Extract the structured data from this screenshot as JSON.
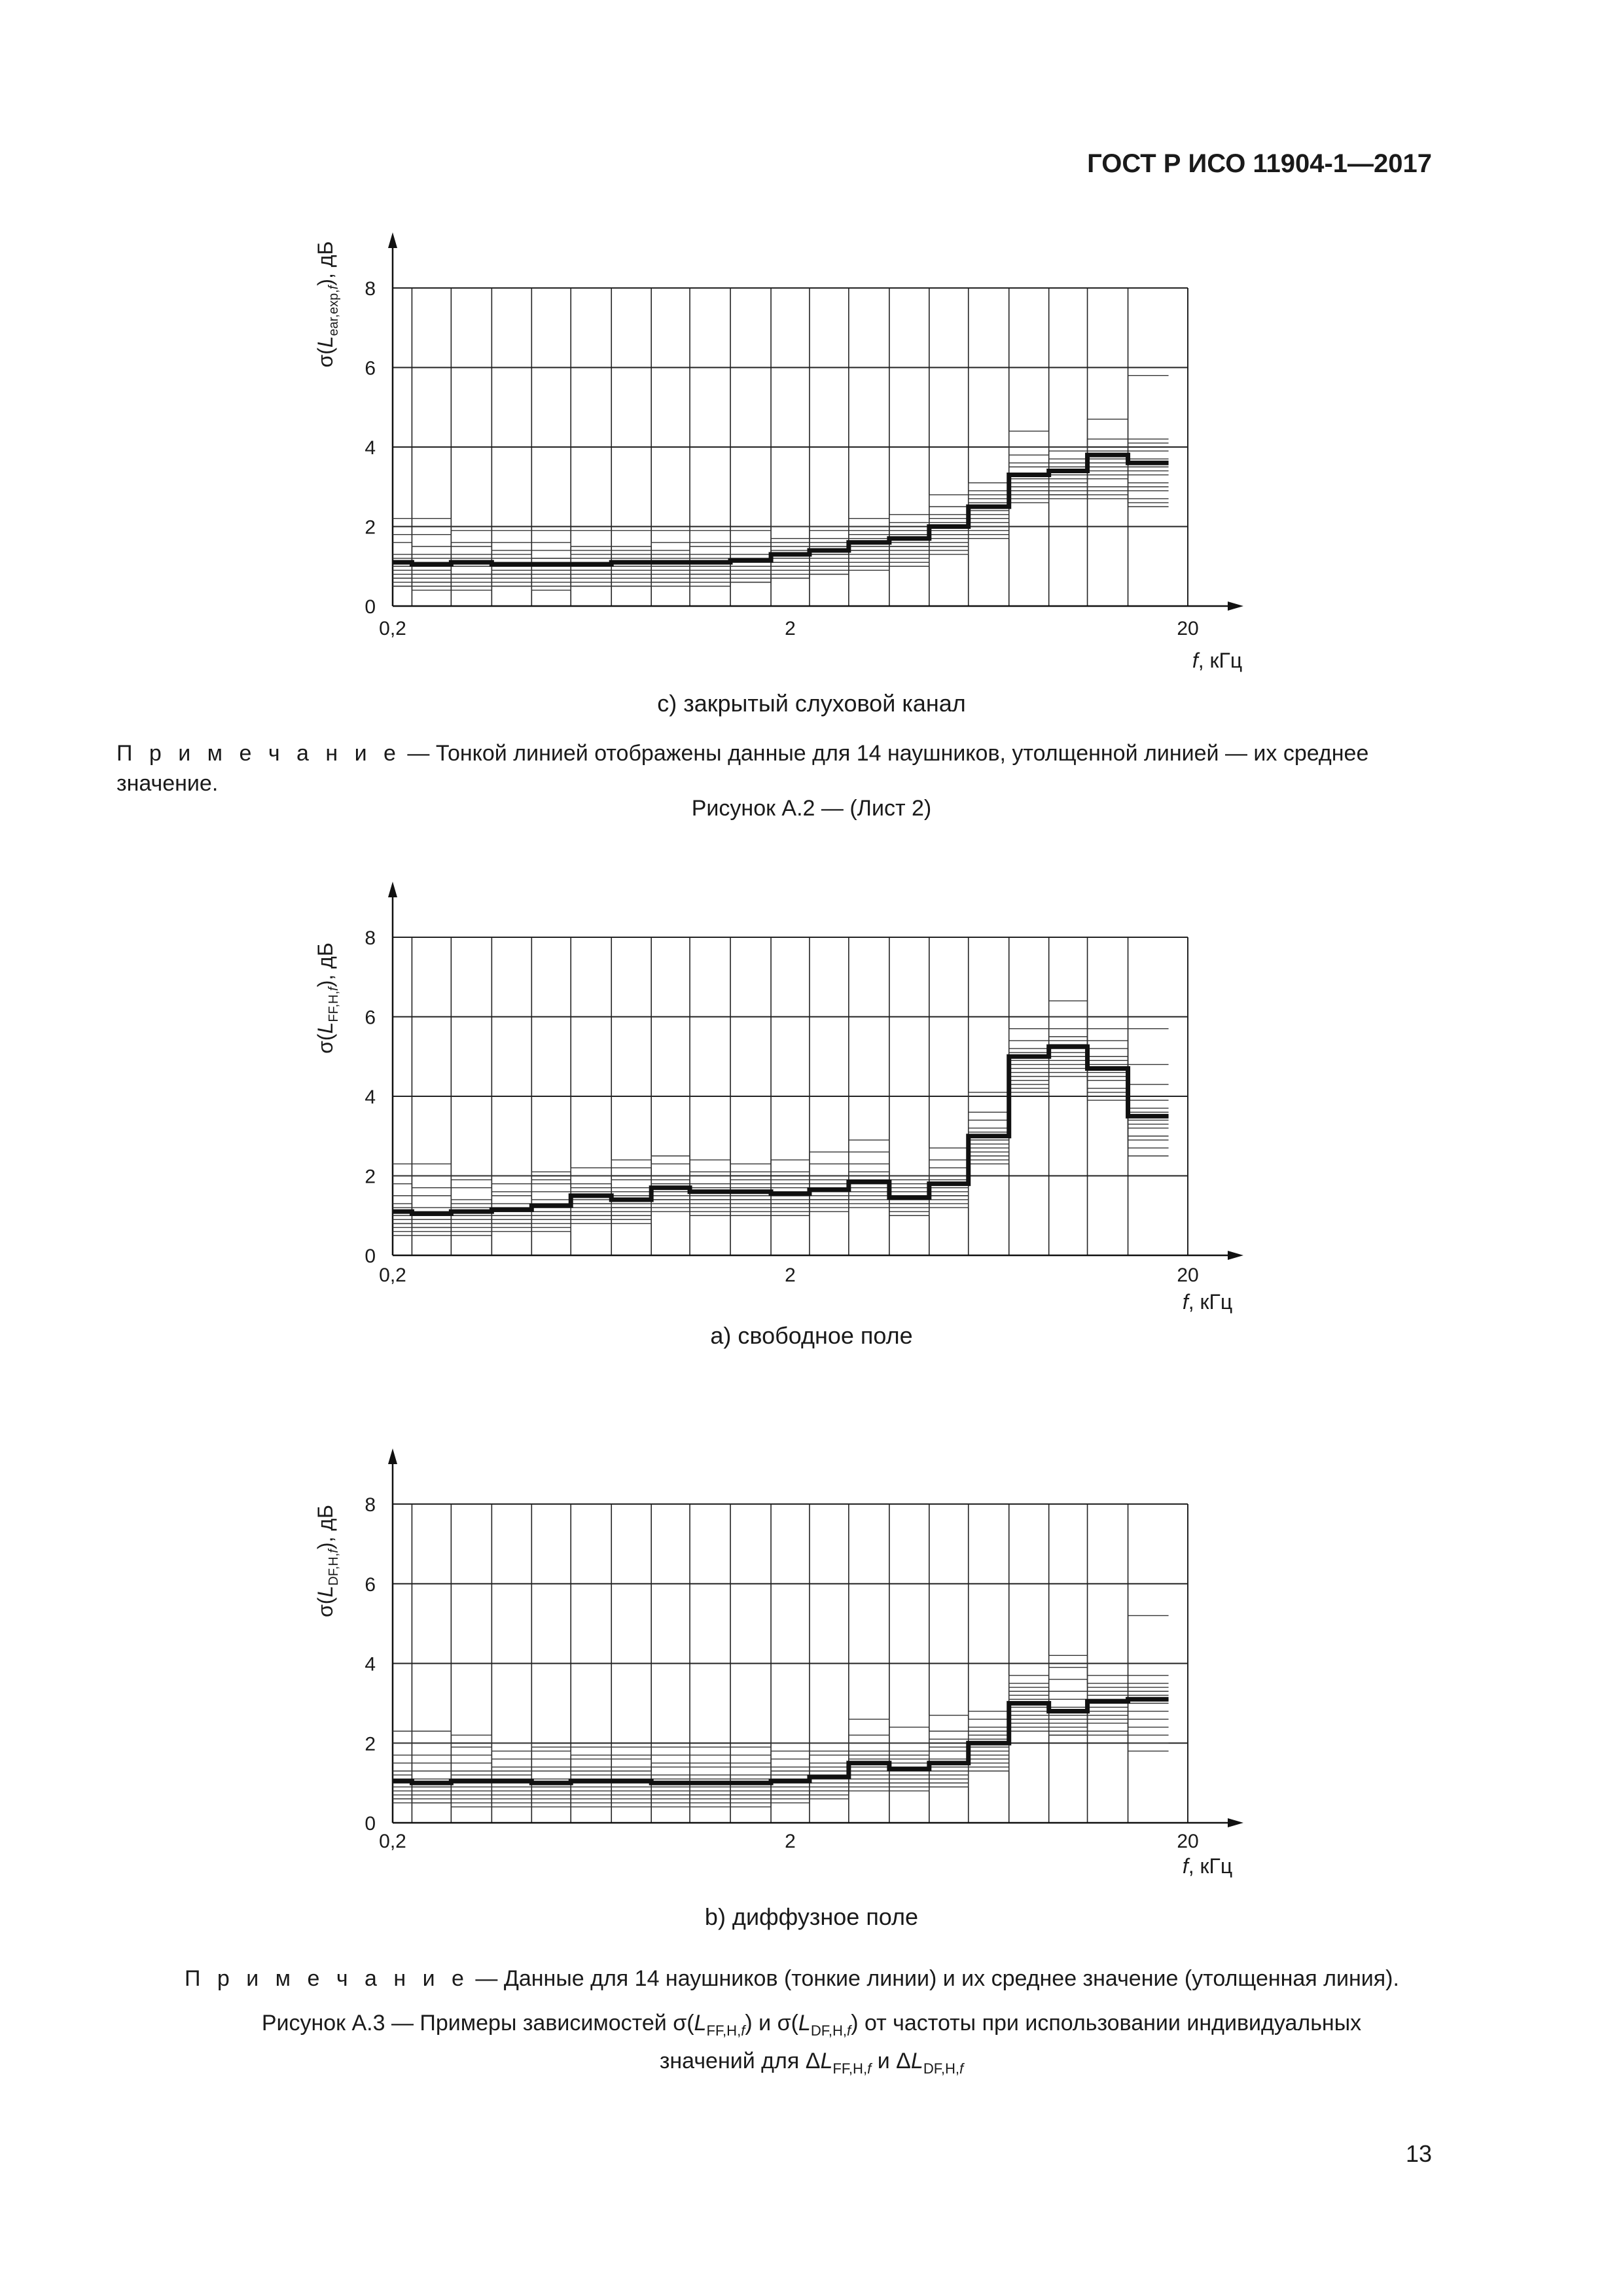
{
  "header": "ГОСТ Р ИСО 11904-1—2017",
  "page_number": "13",
  "bands": [
    0.2,
    0.25,
    0.315,
    0.4,
    0.5,
    0.63,
    0.8,
    1,
    1.25,
    1.6,
    2,
    2.5,
    3.15,
    4,
    5,
    6.3,
    8,
    10,
    12.5,
    16
  ],
  "chart_data": [
    {
      "type": "line",
      "title": "c) закрытый слуховой канал",
      "ylabel": "σ(Lear,exp,f), дБ",
      "xlabel": "f, кГц",
      "xscale": "log",
      "xlim": [
        0.2,
        20
      ],
      "ylim": [
        0,
        8
      ],
      "x_ticks": [
        "0,2",
        "2",
        "20"
      ],
      "y_ticks": [
        "0",
        "2",
        "4",
        "6",
        "8"
      ],
      "mean": [
        1.1,
        1.05,
        1.1,
        1.05,
        1.05,
        1.05,
        1.1,
        1.1,
        1.1,
        1.15,
        1.3,
        1.4,
        1.6,
        1.7,
        2.0,
        2.5,
        3.3,
        3.4,
        3.8,
        3.6
      ],
      "individual": [
        [
          2.2,
          2.2,
          1.9,
          1.9,
          1.9,
          1.9,
          1.9,
          1.9,
          1.9,
          1.9,
          2.0,
          2.0,
          2.2,
          2.3,
          2.8,
          3.1,
          4.4,
          4.0,
          4.7,
          5.8
        ],
        [
          1.8,
          1.8,
          1.6,
          1.6,
          1.6,
          1.5,
          1.5,
          1.6,
          1.6,
          1.6,
          1.7,
          1.9,
          2.0,
          2.1,
          2.5,
          2.9,
          4.0,
          3.9,
          4.2,
          4.2
        ],
        [
          1.6,
          1.5,
          1.5,
          1.4,
          1.4,
          1.4,
          1.4,
          1.4,
          1.5,
          1.5,
          1.6,
          1.7,
          1.9,
          1.9,
          2.3,
          2.7,
          3.8,
          3.7,
          3.9,
          4.1
        ],
        [
          1.3,
          1.3,
          1.3,
          1.3,
          1.2,
          1.3,
          1.3,
          1.3,
          1.3,
          1.3,
          1.5,
          1.6,
          1.8,
          1.8,
          2.2,
          2.8,
          3.6,
          3.6,
          3.6,
          3.9
        ],
        [
          1.2,
          1.2,
          1.2,
          1.2,
          1.2,
          1.2,
          1.2,
          1.2,
          1.2,
          1.2,
          1.4,
          1.5,
          1.7,
          1.8,
          2.1,
          2.6,
          3.5,
          3.5,
          3.7,
          3.7
        ],
        [
          1.1,
          1.1,
          1.1,
          1.1,
          1.1,
          1.1,
          1.1,
          1.1,
          1.1,
          1.2,
          1.3,
          1.4,
          1.6,
          1.7,
          2.0,
          2.5,
          3.3,
          3.4,
          3.6,
          3.5
        ],
        [
          1.0,
          1.0,
          1.0,
          1.0,
          1.0,
          1.0,
          1.0,
          1.0,
          1.0,
          1.1,
          1.2,
          1.3,
          1.5,
          1.6,
          1.9,
          2.4,
          3.2,
          3.3,
          3.5,
          3.4
        ],
        [
          0.9,
          0.9,
          1.0,
          0.9,
          0.9,
          0.9,
          1.0,
          1.0,
          1.0,
          1.0,
          1.1,
          1.3,
          1.4,
          1.5,
          1.8,
          2.3,
          3.1,
          3.2,
          3.4,
          3.3
        ],
        [
          0.8,
          0.8,
          0.8,
          0.8,
          0.9,
          0.9,
          0.9,
          0.9,
          0.9,
          1.0,
          1.1,
          1.2,
          1.4,
          1.5,
          1.8,
          2.2,
          3.0,
          3.1,
          3.3,
          3.1
        ],
        [
          0.7,
          0.7,
          0.8,
          0.8,
          0.8,
          0.8,
          0.8,
          0.8,
          0.8,
          0.9,
          1.0,
          1.1,
          1.3,
          1.4,
          1.7,
          2.1,
          2.9,
          3.0,
          3.2,
          3.0
        ],
        [
          0.7,
          0.6,
          0.7,
          0.7,
          0.7,
          0.7,
          0.7,
          0.7,
          0.8,
          0.8,
          0.9,
          1.0,
          1.2,
          1.3,
          1.6,
          2.0,
          2.9,
          2.9,
          3.0,
          2.9
        ],
        [
          0.6,
          0.6,
          0.6,
          0.6,
          0.6,
          0.6,
          0.6,
          0.6,
          0.7,
          0.7,
          0.8,
          0.9,
          1.1,
          1.2,
          1.5,
          1.9,
          2.8,
          2.8,
          2.9,
          2.7
        ],
        [
          0.5,
          0.5,
          0.5,
          0.5,
          0.5,
          0.5,
          0.5,
          0.6,
          0.6,
          0.6,
          0.7,
          0.8,
          1.0,
          1.1,
          1.4,
          1.8,
          2.7,
          2.8,
          2.8,
          2.6
        ],
        [
          0.5,
          0.4,
          0.4,
          0.5,
          0.4,
          0.5,
          0.5,
          0.5,
          0.5,
          0.6,
          0.7,
          0.8,
          0.9,
          1.0,
          1.3,
          1.7,
          2.6,
          2.7,
          2.7,
          2.5
        ]
      ]
    },
    {
      "type": "line",
      "title": "a) свободное поле",
      "ylabel": "σ(LFF,H,f), дБ",
      "xlabel": "f, кГц",
      "xscale": "log",
      "xlim": [
        0.2,
        20
      ],
      "ylim": [
        0,
        8
      ],
      "x_ticks": [
        "0,2",
        "2",
        "20"
      ],
      "y_ticks": [
        "0",
        "2",
        "4",
        "6",
        "8"
      ],
      "mean": [
        1.1,
        1.05,
        1.1,
        1.15,
        1.25,
        1.5,
        1.4,
        1.7,
        1.6,
        1.6,
        1.55,
        1.65,
        1.85,
        1.45,
        1.8,
        3.0,
        5.0,
        5.25,
        4.7,
        3.5
      ],
      "individual": [
        [
          2.3,
          2.3,
          2.0,
          2.0,
          2.1,
          2.2,
          2.4,
          2.5,
          2.4,
          2.3,
          2.4,
          2.6,
          2.9,
          2.0,
          2.7,
          4.1,
          5.7,
          6.4,
          5.7,
          5.7
        ],
        [
          2.0,
          2.0,
          1.9,
          1.8,
          1.9,
          2.0,
          2.2,
          2.3,
          2.1,
          2.1,
          2.1,
          2.3,
          2.6,
          1.9,
          2.4,
          3.6,
          5.4,
          6.0,
          5.4,
          4.8
        ],
        [
          1.8,
          1.7,
          1.7,
          1.6,
          1.8,
          1.8,
          1.9,
          2.0,
          2.0,
          1.9,
          1.9,
          2.0,
          2.3,
          1.8,
          2.2,
          3.4,
          5.2,
          5.7,
          5.2,
          4.3
        ],
        [
          1.5,
          1.5,
          1.4,
          1.5,
          1.6,
          1.7,
          1.7,
          1.9,
          1.8,
          1.8,
          1.8,
          1.9,
          2.1,
          1.7,
          2.0,
          3.2,
          5.1,
          5.5,
          5.0,
          3.9
        ],
        [
          1.3,
          1.2,
          1.3,
          1.3,
          1.4,
          1.6,
          1.6,
          1.8,
          1.7,
          1.7,
          1.7,
          1.8,
          2.0,
          1.6,
          1.9,
          3.1,
          5.0,
          5.4,
          4.9,
          3.7
        ],
        [
          1.2,
          1.1,
          1.2,
          1.2,
          1.3,
          1.5,
          1.5,
          1.7,
          1.6,
          1.6,
          1.6,
          1.7,
          1.9,
          1.5,
          1.8,
          3.0,
          4.9,
          5.3,
          4.8,
          3.6
        ],
        [
          1.1,
          1.0,
          1.1,
          1.1,
          1.2,
          1.4,
          1.4,
          1.6,
          1.6,
          1.6,
          1.5,
          1.6,
          1.8,
          1.5,
          1.8,
          2.9,
          4.8,
          5.2,
          4.7,
          3.5
        ],
        [
          1.0,
          0.9,
          1.0,
          1.1,
          1.1,
          1.3,
          1.3,
          1.6,
          1.5,
          1.5,
          1.5,
          1.6,
          1.8,
          1.4,
          1.7,
          2.9,
          4.7,
          5.1,
          4.6,
          3.4
        ],
        [
          0.9,
          0.9,
          1.0,
          1.0,
          1.1,
          1.3,
          1.2,
          1.5,
          1.4,
          1.4,
          1.4,
          1.5,
          1.7,
          1.4,
          1.6,
          2.8,
          4.6,
          5.0,
          4.5,
          3.3
        ],
        [
          0.8,
          0.8,
          0.9,
          0.9,
          1.0,
          1.2,
          1.2,
          1.4,
          1.4,
          1.4,
          1.3,
          1.4,
          1.6,
          1.3,
          1.5,
          2.7,
          4.5,
          4.9,
          4.4,
          3.2
        ],
        [
          0.8,
          0.7,
          0.8,
          0.8,
          0.9,
          1.1,
          1.1,
          1.4,
          1.3,
          1.3,
          1.3,
          1.4,
          1.5,
          1.3,
          1.5,
          2.6,
          4.4,
          4.8,
          4.2,
          3.0
        ],
        [
          0.7,
          0.7,
          0.7,
          0.8,
          0.8,
          1.0,
          1.0,
          1.3,
          1.2,
          1.2,
          1.2,
          1.3,
          1.4,
          1.2,
          1.4,
          2.5,
          4.3,
          4.7,
          4.1,
          2.9
        ],
        [
          0.6,
          0.6,
          0.6,
          0.7,
          0.7,
          0.9,
          0.9,
          1.2,
          1.1,
          1.1,
          1.1,
          1.2,
          1.3,
          1.1,
          1.3,
          2.4,
          4.2,
          4.6,
          4.0,
          2.7
        ],
        [
          0.5,
          0.5,
          0.5,
          0.6,
          0.6,
          0.8,
          0.8,
          1.1,
          1.0,
          1.0,
          1.0,
          1.1,
          1.2,
          1.0,
          1.2,
          2.3,
          4.1,
          4.5,
          3.9,
          2.5
        ]
      ]
    },
    {
      "type": "line",
      "title": "b) диффузное поле",
      "ylabel": "σ(LDF,H,f), дБ",
      "xlabel": "f, кГц",
      "xscale": "log",
      "xlim": [
        0.2,
        20
      ],
      "ylim": [
        0,
        8
      ],
      "x_ticks": [
        "0,2",
        "2",
        "20"
      ],
      "y_ticks": [
        "0",
        "2",
        "4",
        "6",
        "8"
      ],
      "mean": [
        1.05,
        1.0,
        1.05,
        1.05,
        1.0,
        1.05,
        1.05,
        1.0,
        1.0,
        1.0,
        1.05,
        1.15,
        1.5,
        1.35,
        1.5,
        2.0,
        3.0,
        2.8,
        3.05,
        3.1
      ],
      "individual": [
        [
          2.3,
          2.3,
          2.2,
          2.0,
          1.9,
          1.9,
          1.9,
          1.9,
          1.9,
          1.9,
          2.0,
          2.0,
          2.6,
          2.4,
          2.7,
          2.8,
          3.7,
          4.2,
          3.7,
          5.2
        ],
        [
          2.0,
          2.0,
          1.9,
          1.8,
          1.8,
          1.7,
          1.7,
          1.7,
          1.7,
          1.7,
          1.8,
          1.8,
          2.2,
          2.0,
          2.3,
          2.6,
          3.5,
          3.9,
          3.5,
          3.7
        ],
        [
          1.7,
          1.7,
          1.7,
          1.6,
          1.6,
          1.6,
          1.6,
          1.5,
          1.5,
          1.5,
          1.6,
          1.7,
          2.0,
          1.8,
          2.1,
          2.4,
          3.4,
          3.6,
          3.4,
          3.5
        ],
        [
          1.5,
          1.5,
          1.5,
          1.4,
          1.4,
          1.4,
          1.4,
          1.4,
          1.4,
          1.4,
          1.4,
          1.5,
          1.8,
          1.7,
          1.9,
          2.3,
          3.3,
          3.3,
          3.3,
          3.4
        ],
        [
          1.3,
          1.3,
          1.3,
          1.3,
          1.3,
          1.3,
          1.3,
          1.2,
          1.2,
          1.2,
          1.3,
          1.4,
          1.7,
          1.6,
          1.8,
          2.2,
          3.2,
          3.1,
          3.2,
          3.3
        ],
        [
          1.2,
          1.1,
          1.2,
          1.2,
          1.1,
          1.2,
          1.2,
          1.1,
          1.1,
          1.1,
          1.2,
          1.3,
          1.6,
          1.5,
          1.6,
          2.1,
          3.1,
          2.9,
          3.1,
          3.2
        ],
        [
          1.1,
          1.0,
          1.1,
          1.1,
          1.0,
          1.1,
          1.1,
          1.0,
          1.0,
          1.0,
          1.1,
          1.2,
          1.5,
          1.4,
          1.5,
          2.0,
          3.0,
          2.8,
          3.0,
          3.1
        ],
        [
          1.0,
          0.9,
          1.0,
          1.0,
          0.9,
          1.0,
          1.0,
          0.9,
          0.9,
          0.9,
          1.0,
          1.1,
          1.4,
          1.3,
          1.4,
          1.9,
          2.9,
          2.7,
          2.9,
          3.0
        ],
        [
          0.9,
          0.9,
          0.9,
          0.9,
          0.9,
          0.9,
          0.9,
          0.8,
          0.8,
          0.8,
          0.9,
          1.0,
          1.3,
          1.2,
          1.3,
          1.8,
          2.8,
          2.6,
          2.8,
          2.8
        ],
        [
          0.8,
          0.8,
          0.8,
          0.8,
          0.8,
          0.8,
          0.8,
          0.7,
          0.7,
          0.7,
          0.8,
          0.9,
          1.2,
          1.1,
          1.2,
          1.7,
          2.7,
          2.5,
          2.7,
          2.6
        ],
        [
          0.7,
          0.7,
          0.7,
          0.7,
          0.7,
          0.7,
          0.7,
          0.7,
          0.7,
          0.7,
          0.7,
          0.8,
          1.1,
          1.0,
          1.1,
          1.6,
          2.6,
          2.4,
          2.6,
          2.4
        ],
        [
          0.6,
          0.6,
          0.6,
          0.6,
          0.6,
          0.6,
          0.6,
          0.6,
          0.6,
          0.6,
          0.7,
          0.8,
          1.0,
          0.9,
          1.0,
          1.5,
          2.5,
          2.3,
          2.5,
          2.2
        ],
        [
          0.6,
          0.5,
          0.5,
          0.5,
          0.5,
          0.5,
          0.5,
          0.5,
          0.5,
          0.5,
          0.6,
          0.7,
          0.9,
          0.9,
          0.9,
          1.4,
          2.4,
          2.2,
          2.3,
          2.0
        ],
        [
          0.5,
          0.5,
          0.4,
          0.4,
          0.4,
          0.4,
          0.4,
          0.4,
          0.4,
          0.4,
          0.5,
          0.6,
          0.8,
          0.8,
          0.9,
          1.3,
          2.3,
          2.2,
          2.2,
          1.8
        ]
      ]
    }
  ],
  "labels": {
    "ylabel_c_pre": "σ(",
    "ylabel_c_L": "L",
    "ylabel_c_sub": "ear,exp,",
    "ylabel_c_subf": "f",
    "ylabel_c_post": "), дБ",
    "ylabel_a_pre": "σ(",
    "ylabel_a_L": "L",
    "ylabel_a_sub": "FF,H,",
    "ylabel_a_subf": "f",
    "ylabel_a_post": "), дБ",
    "ylabel_b_pre": "σ(",
    "ylabel_b_L": "L",
    "ylabel_b_sub": "DF,H,",
    "ylabel_b_subf": "f",
    "ylabel_b_post": "), дБ",
    "xlabel_f": "f",
    "xlabel_rest": ", кГц"
  },
  "note1_label": "П р и м е ч а н и е",
  "note1_text": " — Тонкой линией отображены данные для 14 наушников, утолщенной линией — их среднее значение.",
  "figure_a2": "Рисунок А.2 — (Лист 2)",
  "note2_label": "П р и м е ч а н и е",
  "note2_text": " — Данные для 14 наушников (тонкие линии) и их среднее значение (утолщенная линия).",
  "fig_a3": {
    "line1_a": "Рисунок А.3 — Примеры зависимостей σ(",
    "L": "L",
    "sub_ff": "FF,H,",
    "f": "f",
    "mid1": ") и σ(",
    "sub_df": "DF,H,",
    "line1_b": ") от частоты при использовании индивидуальных",
    "line2_a": "значений для ",
    "delta": "Δ",
    "and": " и "
  }
}
